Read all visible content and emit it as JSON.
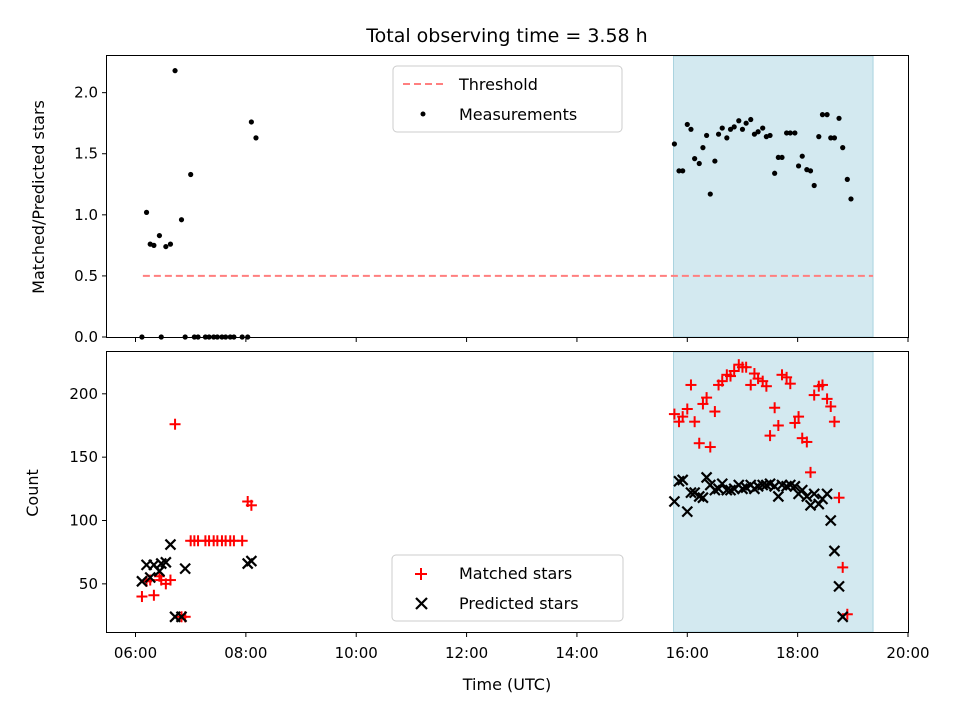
{
  "chart_data": {
    "type": "scatter",
    "title": "Total observing time = 3.58 h",
    "xlabel": "Time (UTC)",
    "x_ticks": [
      "06:00",
      "08:00",
      "10:00",
      "12:00",
      "14:00",
      "16:00",
      "18:00",
      "20:00"
    ],
    "x_range": [
      "05:29",
      "20:00"
    ],
    "shaded_interval": {
      "start": "15:45",
      "end": "19:22",
      "color": "#d3e9f0"
    },
    "panels": [
      {
        "name": "ratio",
        "ylabel": "Matched/Predicted stars",
        "ylim": [
          0,
          2.3
        ],
        "y_ticks": [
          0.0,
          0.5,
          1.0,
          1.5,
          2.0
        ],
        "y_tick_labels": [
          "0.0",
          "0.5",
          "1.0",
          "1.5",
          "2.0"
        ],
        "legend_position": "top-center",
        "threshold": {
          "name": "Threshold",
          "value": 0.5,
          "x_start": "06:08",
          "x_end": "19:22",
          "color": "#ff7f7f",
          "style": "dashed"
        },
        "series": [
          {
            "name": "Measurements",
            "marker": "dot",
            "color": "#000000",
            "points": [
              [
                "06:07",
                0.0
              ],
              [
                "06:12",
                1.02
              ],
              [
                "06:16",
                0.76
              ],
              [
                "06:20",
                0.75
              ],
              [
                "06:26",
                0.83
              ],
              [
                "06:28",
                0.0
              ],
              [
                "06:33",
                0.74
              ],
              [
                "06:38",
                0.76
              ],
              [
                "06:43",
                2.18
              ],
              [
                "06:50",
                0.96
              ],
              [
                "06:54",
                0.0
              ],
              [
                "07:00",
                1.33
              ],
              [
                "07:04",
                0.0
              ],
              [
                "07:08",
                0.0
              ],
              [
                "07:16",
                0.0
              ],
              [
                "07:20",
                0.0
              ],
              [
                "07:25",
                0.0
              ],
              [
                "07:29",
                0.0
              ],
              [
                "07:34",
                0.0
              ],
              [
                "07:38",
                0.0
              ],
              [
                "07:43",
                0.0
              ],
              [
                "07:47",
                0.0
              ],
              [
                "07:56",
                0.0
              ],
              [
                "08:02",
                0.0
              ],
              [
                "08:06",
                1.76
              ],
              [
                "08:11",
                1.63
              ],
              [
                "15:46",
                1.58
              ],
              [
                "15:51",
                1.36
              ],
              [
                "15:55",
                1.36
              ],
              [
                "16:00",
                1.74
              ],
              [
                "16:04",
                1.7
              ],
              [
                "16:08",
                1.46
              ],
              [
                "16:13",
                1.42
              ],
              [
                "16:17",
                1.55
              ],
              [
                "16:21",
                1.65
              ],
              [
                "16:25",
                1.17
              ],
              [
                "16:30",
                1.44
              ],
              [
                "16:34",
                1.66
              ],
              [
                "16:38",
                1.71
              ],
              [
                "16:43",
                1.63
              ],
              [
                "16:47",
                1.7
              ],
              [
                "16:51",
                1.72
              ],
              [
                "16:56",
                1.77
              ],
              [
                "17:00",
                1.7
              ],
              [
                "17:04",
                1.75
              ],
              [
                "17:09",
                1.78
              ],
              [
                "17:13",
                1.66
              ],
              [
                "17:17",
                1.68
              ],
              [
                "17:22",
                1.71
              ],
              [
                "17:26",
                1.64
              ],
              [
                "17:30",
                1.65
              ],
              [
                "17:35",
                1.34
              ],
              [
                "17:39",
                1.47
              ],
              [
                "17:43",
                1.47
              ],
              [
                "17:48",
                1.67
              ],
              [
                "17:52",
                1.67
              ],
              [
                "17:57",
                1.67
              ],
              [
                "18:01",
                1.4
              ],
              [
                "18:05",
                1.48
              ],
              [
                "18:10",
                1.37
              ],
              [
                "18:14",
                1.36
              ],
              [
                "18:18",
                1.24
              ],
              [
                "18:23",
                1.64
              ],
              [
                "18:27",
                1.82
              ],
              [
                "18:32",
                1.82
              ],
              [
                "18:36",
                1.63
              ],
              [
                "18:40",
                1.63
              ],
              [
                "18:45",
                1.79
              ],
              [
                "18:49",
                1.55
              ],
              [
                "18:54",
                1.29
              ],
              [
                "18:58",
                1.13
              ]
            ]
          }
        ]
      },
      {
        "name": "counts",
        "ylabel": "Count",
        "ylim": [
          12,
          233
        ],
        "y_ticks": [
          50,
          100,
          150,
          200
        ],
        "y_tick_labels": [
          "50",
          "100",
          "150",
          "200"
        ],
        "legend_position": "bottom-center",
        "series": [
          {
            "name": "Matched stars",
            "marker": "plus",
            "color": "#ff0000",
            "points": [
              [
                "06:07",
                40
              ],
              [
                "06:12",
                52
              ],
              [
                "06:16",
                53
              ],
              [
                "06:20",
                41
              ],
              [
                "06:26",
                56
              ],
              [
                "06:28",
                53
              ],
              [
                "06:33",
                50
              ],
              [
                "06:38",
                53
              ],
              [
                "06:43",
                176
              ],
              [
                "06:50",
                24
              ],
              [
                "06:54",
                24
              ],
              [
                "07:00",
                84
              ],
              [
                "07:04",
                84
              ],
              [
                "07:08",
                84
              ],
              [
                "07:16",
                84
              ],
              [
                "07:20",
                84
              ],
              [
                "07:25",
                84
              ],
              [
                "07:29",
                84
              ],
              [
                "07:34",
                84
              ],
              [
                "07:38",
                84
              ],
              [
                "07:43",
                84
              ],
              [
                "07:47",
                84
              ],
              [
                "07:56",
                84
              ],
              [
                "08:02",
                115
              ],
              [
                "08:06",
                112
              ],
              [
                "15:46",
                184
              ],
              [
                "15:51",
                178
              ],
              [
                "15:55",
                182
              ],
              [
                "16:00",
                188
              ],
              [
                "16:04",
                207
              ],
              [
                "16:08",
                178
              ],
              [
                "16:13",
                161
              ],
              [
                "16:17",
                192
              ],
              [
                "16:21",
                197
              ],
              [
                "16:25",
                158
              ],
              [
                "16:30",
                186
              ],
              [
                "16:34",
                207
              ],
              [
                "16:38",
                210
              ],
              [
                "16:43",
                215
              ],
              [
                "16:47",
                214
              ],
              [
                "16:51",
                218
              ],
              [
                "16:56",
                223
              ],
              [
                "17:00",
                221
              ],
              [
                "17:04",
                221
              ],
              [
                "17:09",
                207
              ],
              [
                "17:13",
                216
              ],
              [
                "17:17",
                212
              ],
              [
                "17:22",
                210
              ],
              [
                "17:26",
                206
              ],
              [
                "17:30",
                167
              ],
              [
                "17:35",
                189
              ],
              [
                "17:39",
                175
              ],
              [
                "17:43",
                215
              ],
              [
                "17:48",
                213
              ],
              [
                "17:52",
                208
              ],
              [
                "17:57",
                177
              ],
              [
                "18:01",
                182
              ],
              [
                "18:05",
                165
              ],
              [
                "18:10",
                162
              ],
              [
                "18:14",
                138
              ],
              [
                "18:18",
                199
              ],
              [
                "18:23",
                206
              ],
              [
                "18:27",
                207
              ],
              [
                "18:32",
                196
              ],
              [
                "18:36",
                190
              ],
              [
                "18:40",
                178
              ],
              [
                "18:45",
                118
              ],
              [
                "18:49",
                63
              ],
              [
                "18:54",
                26
              ]
            ]
          },
          {
            "name": "Predicted stars",
            "marker": "x",
            "color": "#000000",
            "points": [
              [
                "06:07",
                52
              ],
              [
                "06:12",
                65
              ],
              [
                "06:16",
                55
              ],
              [
                "06:20",
                65
              ],
              [
                "06:26",
                60
              ],
              [
                "06:28",
                66
              ],
              [
                "06:33",
                67
              ],
              [
                "06:38",
                81
              ],
              [
                "06:43",
                24
              ],
              [
                "06:50",
                24
              ],
              [
                "06:54",
                62
              ],
              [
                "08:02",
                66
              ],
              [
                "08:06",
                68
              ],
              [
                "15:46",
                115
              ],
              [
                "15:51",
                131
              ],
              [
                "15:55",
                132
              ],
              [
                "16:00",
                107
              ],
              [
                "16:04",
                122
              ],
              [
                "16:08",
                122
              ],
              [
                "16:13",
                119
              ],
              [
                "16:17",
                118
              ],
              [
                "16:21",
                134
              ],
              [
                "16:25",
                128
              ],
              [
                "16:30",
                124
              ],
              [
                "16:34",
                125
              ],
              [
                "16:38",
                129
              ],
              [
                "16:43",
                124
              ],
              [
                "16:47",
                124
              ],
              [
                "16:51",
                125
              ],
              [
                "16:56",
                128
              ],
              [
                "17:00",
                125
              ],
              [
                "17:04",
                126
              ],
              [
                "17:09",
                128
              ],
              [
                "17:13",
                125
              ],
              [
                "17:17",
                127
              ],
              [
                "17:22",
                128
              ],
              [
                "17:26",
                128
              ],
              [
                "17:30",
                129
              ],
              [
                "17:35",
                127
              ],
              [
                "17:39",
                119
              ],
              [
                "17:43",
                128
              ],
              [
                "17:48",
                127
              ],
              [
                "17:52",
                128
              ],
              [
                "17:57",
                127
              ],
              [
                "18:01",
                121
              ],
              [
                "18:05",
                124
              ],
              [
                "18:10",
                119
              ],
              [
                "18:14",
                112
              ],
              [
                "18:18",
                121
              ],
              [
                "18:23",
                113
              ],
              [
                "18:27",
                117
              ],
              [
                "18:32",
                121
              ],
              [
                "18:36",
                100
              ],
              [
                "18:40",
                76
              ],
              [
                "18:45",
                48
              ],
              [
                "18:49",
                24
              ]
            ]
          }
        ]
      }
    ]
  }
}
